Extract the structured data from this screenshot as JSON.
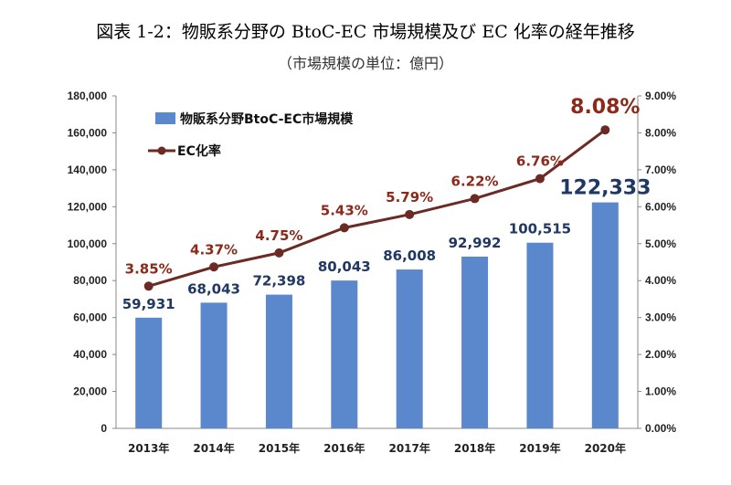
{
  "header": {
    "title": "図表 1-2：物販系分野の BtoC-EC 市場規模及び EC 化率の経年推移",
    "subtitle": "（市場規模の単位：億円）"
  },
  "colors": {
    "bar": "#5b87cc",
    "line": "#6b2a24",
    "bar_label": "#1f3864",
    "rate_label": "#8b2a1a"
  },
  "chart_data": {
    "type": "bar",
    "categories": [
      "2013年",
      "2014年",
      "2015年",
      "2016年",
      "2017年",
      "2018年",
      "2019年",
      "2020年"
    ],
    "series": [
      {
        "name": "物販系分野BtoC-EC市場規模",
        "type": "bar",
        "axis": "left",
        "values": [
          59931,
          68043,
          72398,
          80043,
          86008,
          92992,
          100515,
          122333
        ],
        "labels": [
          "59,931",
          "68,043",
          "72,398",
          "80,043",
          "86,008",
          "92,992",
          "100,515",
          "122,333"
        ]
      },
      {
        "name": "EC化率",
        "type": "line",
        "axis": "right",
        "values": [
          3.85,
          4.37,
          4.75,
          5.43,
          5.79,
          6.22,
          6.76,
          8.08
        ],
        "labels": [
          "3.85%",
          "4.37%",
          "4.75%",
          "5.43%",
          "5.79%",
          "6.22%",
          "6.76%",
          "8.08%"
        ]
      }
    ],
    "y_left": {
      "range": [
        0,
        180000
      ],
      "ticks": [
        "0",
        "20,000",
        "40,000",
        "60,000",
        "80,000",
        "100,000",
        "120,000",
        "140,000",
        "160,000",
        "180,000"
      ]
    },
    "y_right": {
      "range": [
        0,
        9
      ],
      "ticks": [
        "0.00%",
        "1.00%",
        "2.00%",
        "3.00%",
        "4.00%",
        "5.00%",
        "6.00%",
        "7.00%",
        "8.00%",
        "9.00%"
      ]
    },
    "grid": false,
    "legend": "top-left"
  }
}
